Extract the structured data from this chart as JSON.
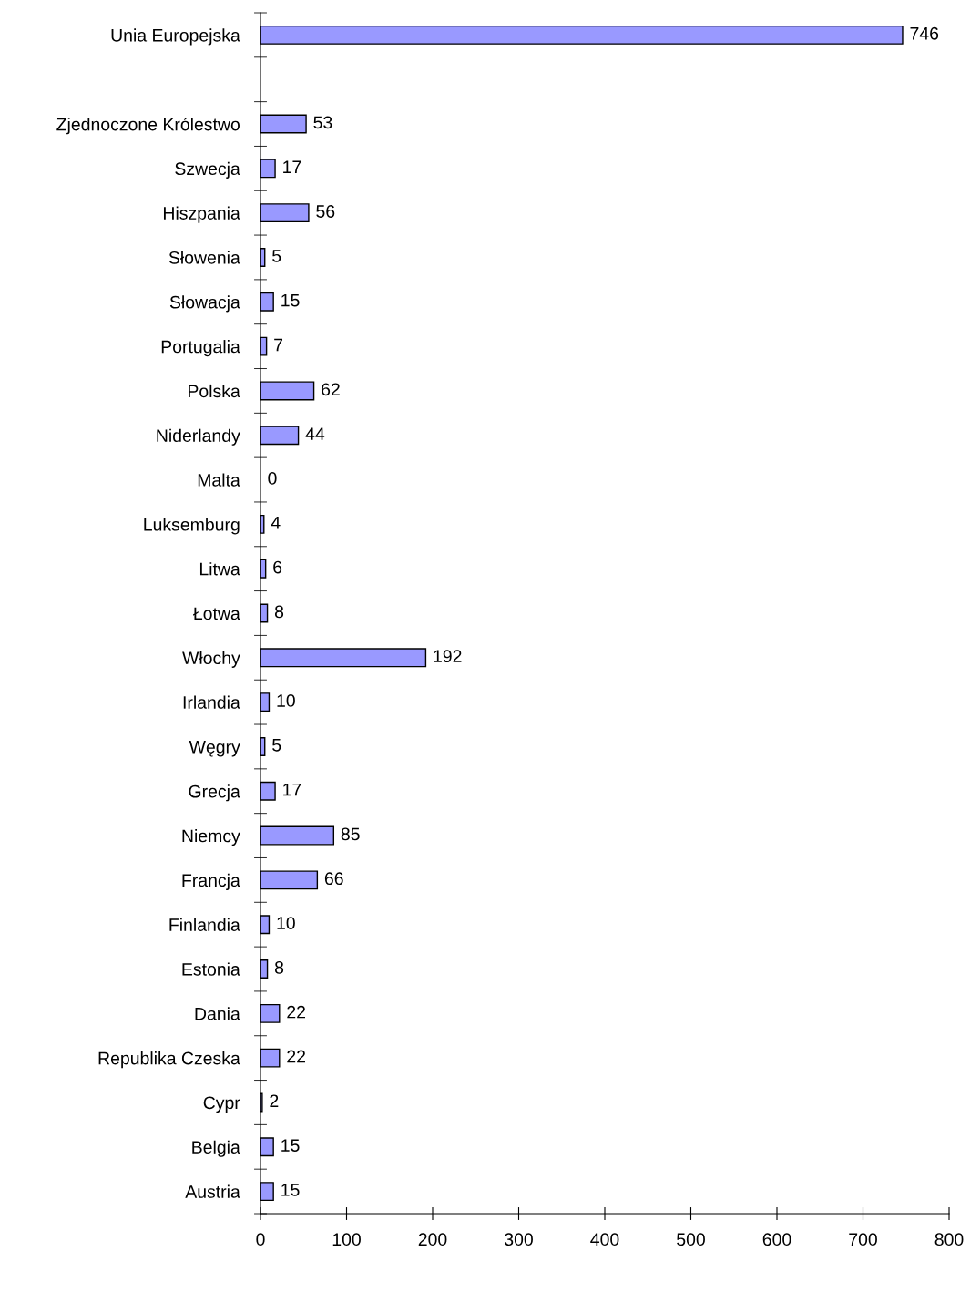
{
  "chart_data": {
    "type": "bar",
    "orientation": "horizontal",
    "data_labels": true,
    "grid": false,
    "legend": false,
    "categories": [
      "Unia Europejska",
      null,
      "Zjednoczone Królestwo",
      "Szwecja",
      "Hiszpania",
      "Słowenia",
      "Słowacja",
      "Portugalia",
      "Polska",
      "Niderlandy",
      "Malta",
      "Luksemburg",
      "Litwa",
      "Łotwa",
      "Włochy",
      "Irlandia",
      "Węgry",
      "Grecja",
      "Niemcy",
      "Francja",
      "Finlandia",
      "Estonia",
      "Dania",
      "Republika Czeska",
      "Cypr",
      "Belgia",
      "Austria"
    ],
    "values": [
      746,
      null,
      53,
      17,
      56,
      5,
      15,
      7,
      62,
      44,
      0,
      4,
      6,
      8,
      192,
      10,
      5,
      17,
      85,
      66,
      10,
      8,
      22,
      22,
      2,
      15,
      15
    ],
    "color": "#9999ff",
    "xlim": [
      0,
      800
    ],
    "xticks": [
      0,
      100,
      200,
      300,
      400,
      500,
      600,
      700,
      800
    ]
  }
}
